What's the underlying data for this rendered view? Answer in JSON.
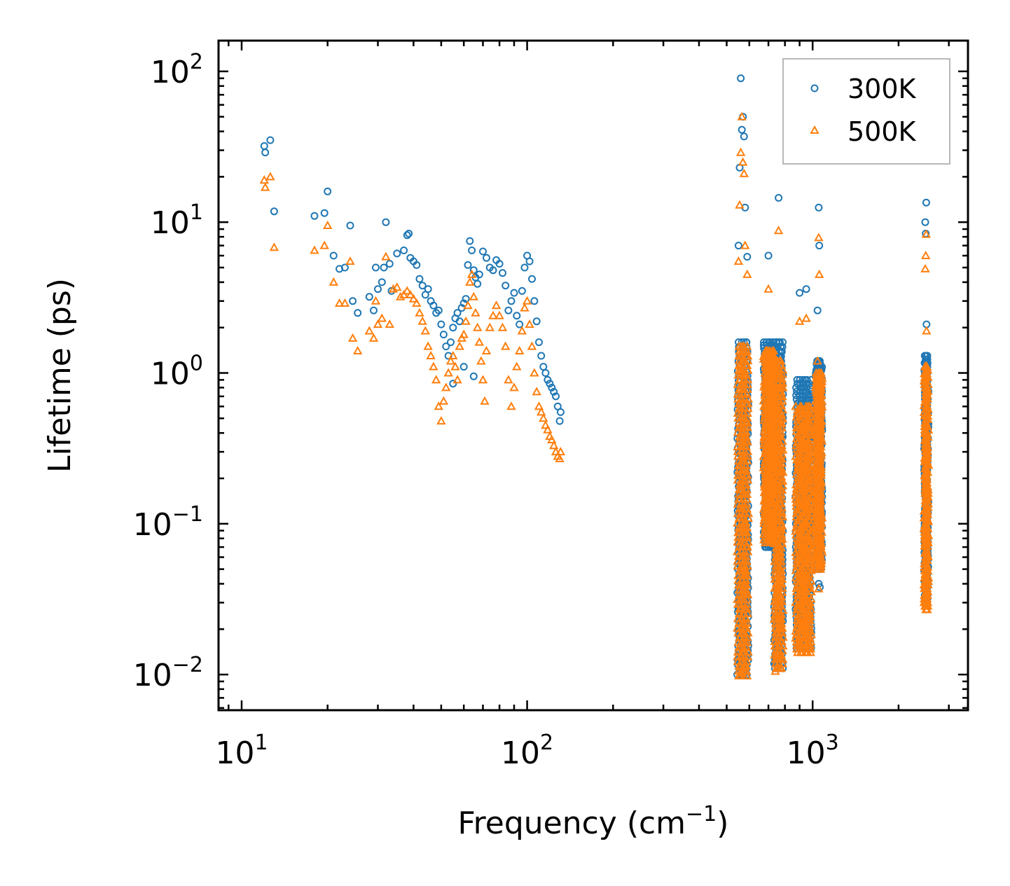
{
  "chart_data": {
    "type": "scatter",
    "title": "",
    "xlabel": "Frequency (cm",
    "xlabel_sup": "−1",
    "xlabel_close": ")",
    "ylabel": "Lifetime (ps)",
    "x_scale": "log",
    "y_scale": "log",
    "xlim": [
      8.3,
      3500
    ],
    "ylim": [
      0.0058,
      160
    ],
    "grid": false,
    "legend_position": "top-right",
    "x_ticks": [
      {
        "value": 10,
        "base": "10",
        "exp": "1"
      },
      {
        "value": 100,
        "base": "10",
        "exp": "2"
      },
      {
        "value": 1000,
        "base": "10",
        "exp": "3"
      }
    ],
    "y_ticks": [
      {
        "value": 0.01,
        "base": "10",
        "exp": "−2"
      },
      {
        "value": 0.1,
        "base": "10",
        "exp": "−1"
      },
      {
        "value": 1,
        "base": "10",
        "exp": "0"
      },
      {
        "value": 10,
        "base": "10",
        "exp": "1"
      },
      {
        "value": 100,
        "base": "10",
        "exp": "2"
      }
    ],
    "series": [
      {
        "name": "300K",
        "color": "#1f77b4",
        "marker": "circle",
        "points": [
          [
            12.0,
            32.0
          ],
          [
            12.1,
            29.0
          ],
          [
            12.6,
            35.0
          ],
          [
            13.0,
            11.8
          ],
          [
            18.0,
            11.0
          ],
          [
            19.5,
            11.5
          ],
          [
            20.0,
            16.0
          ],
          [
            21.0,
            6.0
          ],
          [
            22.0,
            4.9
          ],
          [
            23.0,
            5.0
          ],
          [
            24.0,
            9.5
          ],
          [
            24.5,
            3.0
          ],
          [
            25.5,
            2.5
          ],
          [
            28.0,
            3.2
          ],
          [
            29.0,
            2.6
          ],
          [
            29.5,
            5.0
          ],
          [
            30.0,
            3.6
          ],
          [
            31.0,
            4.0
          ],
          [
            31.5,
            5.0
          ],
          [
            32.0,
            10.0
          ],
          [
            33.0,
            5.3
          ],
          [
            33.5,
            3.5
          ],
          [
            35.0,
            6.2
          ],
          [
            37.0,
            6.5
          ],
          [
            38.0,
            8.2
          ],
          [
            38.5,
            8.4
          ],
          [
            39.0,
            5.8
          ],
          [
            40.0,
            5.5
          ],
          [
            41.0,
            5.2
          ],
          [
            42.0,
            4.2
          ],
          [
            43.0,
            3.8
          ],
          [
            44.0,
            3.3
          ],
          [
            45.0,
            3.6
          ],
          [
            46.0,
            3.0
          ],
          [
            47.0,
            2.8
          ],
          [
            48.0,
            2.5
          ],
          [
            49.0,
            2.6
          ],
          [
            50.0,
            2.1
          ],
          [
            51.0,
            1.8
          ],
          [
            52.0,
            1.5
          ],
          [
            53.0,
            1.3
          ],
          [
            54.0,
            1.6
          ],
          [
            55.0,
            2.0
          ],
          [
            56.0,
            2.3
          ],
          [
            57.0,
            2.5
          ],
          [
            58.0,
            2.2
          ],
          [
            59.0,
            2.7
          ],
          [
            60.0,
            2.9
          ],
          [
            61.0,
            3.1
          ],
          [
            62.0,
            5.2
          ],
          [
            63.0,
            7.5
          ],
          [
            64.0,
            6.5
          ],
          [
            65.0,
            4.8
          ],
          [
            66.0,
            4.3
          ],
          [
            67.0,
            3.9
          ],
          [
            68.0,
            4.5
          ],
          [
            70.0,
            6.4
          ],
          [
            72.0,
            5.8
          ],
          [
            74.0,
            5.0
          ],
          [
            76.0,
            4.8
          ],
          [
            78.0,
            5.6
          ],
          [
            80.0,
            5.3
          ],
          [
            82.0,
            4.6
          ],
          [
            84.0,
            3.8
          ],
          [
            86.0,
            2.6
          ],
          [
            88.0,
            3.0
          ],
          [
            90.0,
            3.4
          ],
          [
            92.0,
            2.4
          ],
          [
            94.0,
            2.1
          ],
          [
            96.0,
            3.5
          ],
          [
            98.0,
            5.0
          ],
          [
            100.0,
            6.0
          ],
          [
            102.0,
            5.5
          ],
          [
            104.0,
            4.2
          ],
          [
            106.0,
            3.0
          ],
          [
            108.0,
            2.2
          ],
          [
            110.0,
            1.6
          ],
          [
            112.0,
            1.3
          ],
          [
            114.0,
            1.1
          ],
          [
            116.0,
            1.0
          ],
          [
            118.0,
            0.9
          ],
          [
            120.0,
            0.85
          ],
          [
            122.0,
            0.8
          ],
          [
            124.0,
            0.75
          ],
          [
            126.0,
            0.7
          ],
          [
            128.0,
            0.6
          ],
          [
            130.0,
            0.48
          ],
          [
            131.0,
            0.55
          ],
          [
            55.0,
            0.85
          ],
          [
            60.0,
            1.1
          ],
          [
            65.0,
            0.95
          ],
          [
            560.0,
            90.0
          ],
          [
            565.0,
            41.0
          ],
          [
            570.0,
            50.0
          ],
          [
            575.0,
            37.0
          ],
          [
            580.0,
            12.5
          ],
          [
            555.0,
            23.0
          ],
          [
            550.0,
            7.0
          ],
          [
            590.0,
            5.9
          ],
          [
            760.0,
            14.5
          ],
          [
            700.0,
            6.0
          ],
          [
            1050.0,
            12.5
          ],
          [
            1055.0,
            7.0
          ],
          [
            1040.0,
            2.6
          ],
          [
            900.0,
            3.4
          ],
          [
            950.0,
            3.6
          ],
          [
            2500.0,
            13.5
          ],
          [
            2480.0,
            10.0
          ],
          [
            2490.0,
            8.4
          ],
          [
            2505.0,
            2.1
          ],
          [
            2495.0,
            1.1
          ],
          [
            555.0,
            0.011
          ],
          [
            560.0,
            0.013
          ],
          [
            570.0,
            0.015
          ],
          [
            575.0,
            0.012
          ],
          [
            740.0,
            0.012
          ],
          [
            760.0,
            0.014
          ],
          [
            950.0,
            0.018
          ],
          [
            970.0,
            0.02
          ],
          [
            1050.0,
            0.04
          ],
          [
            1060.0,
            0.038
          ],
          [
            2500.0,
            0.03
          ],
          [
            2510.0,
            0.035
          ]
        ]
      },
      {
        "name": "500K",
        "color": "#ff7f0e",
        "marker": "triangle",
        "points": [
          [
            12.0,
            19.0
          ],
          [
            12.1,
            17.0
          ],
          [
            12.6,
            20.0
          ],
          [
            13.0,
            6.8
          ],
          [
            18.0,
            6.5
          ],
          [
            19.5,
            7.0
          ],
          [
            20.0,
            9.5
          ],
          [
            21.0,
            4.0
          ],
          [
            22.0,
            2.9
          ],
          [
            23.0,
            2.9
          ],
          [
            24.0,
            5.5
          ],
          [
            24.5,
            1.7
          ],
          [
            25.5,
            1.4
          ],
          [
            28.0,
            1.9
          ],
          [
            29.0,
            1.7
          ],
          [
            29.5,
            3.0
          ],
          [
            30.0,
            2.1
          ],
          [
            31.0,
            2.3
          ],
          [
            32.0,
            5.9
          ],
          [
            33.0,
            2.1
          ],
          [
            34.0,
            3.6
          ],
          [
            35.0,
            3.7
          ],
          [
            36.0,
            3.2
          ],
          [
            37.0,
            3.3
          ],
          [
            38.0,
            3.5
          ],
          [
            39.0,
            3.3
          ],
          [
            40.0,
            3.1
          ],
          [
            41.0,
            2.9
          ],
          [
            42.0,
            2.5
          ],
          [
            43.0,
            2.2
          ],
          [
            44.0,
            1.9
          ],
          [
            45.0,
            1.5
          ],
          [
            46.0,
            1.3
          ],
          [
            47.0,
            1.1
          ],
          [
            48.0,
            0.9
          ],
          [
            49.0,
            0.6
          ],
          [
            50.0,
            0.48
          ],
          [
            51.0,
            0.65
          ],
          [
            52.0,
            0.8
          ],
          [
            53.0,
            1.0
          ],
          [
            54.0,
            1.2
          ],
          [
            55.0,
            1.3
          ],
          [
            56.0,
            1.1
          ],
          [
            57.0,
            0.9
          ],
          [
            58.0,
            1.5
          ],
          [
            59.0,
            1.7
          ],
          [
            60.0,
            1.8
          ],
          [
            61.0,
            2.2
          ],
          [
            62.0,
            2.8
          ],
          [
            63.0,
            4.0
          ],
          [
            64.0,
            4.5
          ],
          [
            65.0,
            3.2
          ],
          [
            66.0,
            2.5
          ],
          [
            67.0,
            2.0
          ],
          [
            68.0,
            1.6
          ],
          [
            69.0,
            1.2
          ],
          [
            70.0,
            0.9
          ],
          [
            71.0,
            0.65
          ],
          [
            72.0,
            1.4
          ],
          [
            74.0,
            2.0
          ],
          [
            76.0,
            2.4
          ],
          [
            78.0,
            2.8
          ],
          [
            80.0,
            2.4
          ],
          [
            82.0,
            2.0
          ],
          [
            84.0,
            1.5
          ],
          [
            86.0,
            0.9
          ],
          [
            88.0,
            0.6
          ],
          [
            90.0,
            0.8
          ],
          [
            92.0,
            1.1
          ],
          [
            94.0,
            1.4
          ],
          [
            96.0,
            1.9
          ],
          [
            98.0,
            2.7
          ],
          [
            100.0,
            3.0
          ],
          [
            102.0,
            2.1
          ],
          [
            104.0,
            1.5
          ],
          [
            106.0,
            1.0
          ],
          [
            108.0,
            0.75
          ],
          [
            110.0,
            0.6
          ],
          [
            112.0,
            0.55
          ],
          [
            114.0,
            0.5
          ],
          [
            116.0,
            0.45
          ],
          [
            118.0,
            0.42
          ],
          [
            120.0,
            0.38
          ],
          [
            122.0,
            0.36
          ],
          [
            124.0,
            0.33
          ],
          [
            126.0,
            0.3
          ],
          [
            128.0,
            0.28
          ],
          [
            130.0,
            0.27
          ],
          [
            131.0,
            0.3
          ],
          [
            565.0,
            50.0
          ],
          [
            560.0,
            29.0
          ],
          [
            570.0,
            25.0
          ],
          [
            575.0,
            21.0
          ],
          [
            555.0,
            13.0
          ],
          [
            580.0,
            7.0
          ],
          [
            550.0,
            5.5
          ],
          [
            590.0,
            4.5
          ],
          [
            760.0,
            8.8
          ],
          [
            700.0,
            3.6
          ],
          [
            1050.0,
            7.9
          ],
          [
            1055.0,
            4.5
          ],
          [
            1040.0,
            1.2
          ],
          [
            900.0,
            2.2
          ],
          [
            950.0,
            2.3
          ],
          [
            2500.0,
            8.3
          ],
          [
            2490.0,
            6.0
          ],
          [
            2480.0,
            4.9
          ],
          [
            2505.0,
            1.9
          ],
          [
            555.0,
            0.0098
          ],
          [
            560.0,
            0.0102
          ],
          [
            570.0,
            0.011
          ],
          [
            740.0,
            0.0105
          ],
          [
            760.0,
            0.011
          ],
          [
            950.0,
            0.014
          ],
          [
            970.0,
            0.015
          ],
          [
            1050.0,
            0.037
          ],
          [
            2500.0,
            0.027
          ],
          [
            2510.0,
            0.03
          ]
        ]
      }
    ],
    "bands": [
      {
        "series": "300K",
        "x": [
          550,
          560,
          570,
          580,
          590
        ],
        "ylo": 0.01,
        "yhi": 1.6
      },
      {
        "series": "500K",
        "x": [
          550,
          560,
          570,
          580,
          590
        ],
        "ylo": 0.0098,
        "yhi": 1.5
      },
      {
        "series": "300K",
        "x": [
          680,
          690,
          700,
          710,
          720,
          730
        ],
        "ylo": 0.07,
        "yhi": 1.6
      },
      {
        "series": "500K",
        "x": [
          680,
          690,
          700,
          710,
          720,
          730
        ],
        "ylo": 0.075,
        "yhi": 1.4
      },
      {
        "series": "300K",
        "x": [
          740,
          750,
          760,
          770,
          780
        ],
        "ylo": 0.011,
        "yhi": 1.6
      },
      {
        "series": "500K",
        "x": [
          740,
          750,
          760,
          770,
          780
        ],
        "ylo": 0.011,
        "yhi": 1.2
      },
      {
        "series": "300K",
        "x": [
          880,
          900,
          920,
          940,
          960,
          980
        ],
        "ylo": 0.015,
        "yhi": 0.9
      },
      {
        "series": "500K",
        "x": [
          880,
          900,
          920,
          940,
          960,
          980
        ],
        "ylo": 0.014,
        "yhi": 0.6
      },
      {
        "series": "300K",
        "x": [
          1030,
          1040,
          1050,
          1060,
          1070
        ],
        "ylo": 0.05,
        "yhi": 1.2
      },
      {
        "series": "500K",
        "x": [
          1030,
          1040,
          1050,
          1060,
          1070
        ],
        "ylo": 0.05,
        "yhi": 1.0
      },
      {
        "series": "300K",
        "x": [
          2480,
          2490,
          2500,
          2510,
          2520
        ],
        "ylo": 0.03,
        "yhi": 1.3
      },
      {
        "series": "500K",
        "x": [
          2480,
          2490,
          2500,
          2510,
          2520
        ],
        "ylo": 0.027,
        "yhi": 1.1
      }
    ]
  }
}
